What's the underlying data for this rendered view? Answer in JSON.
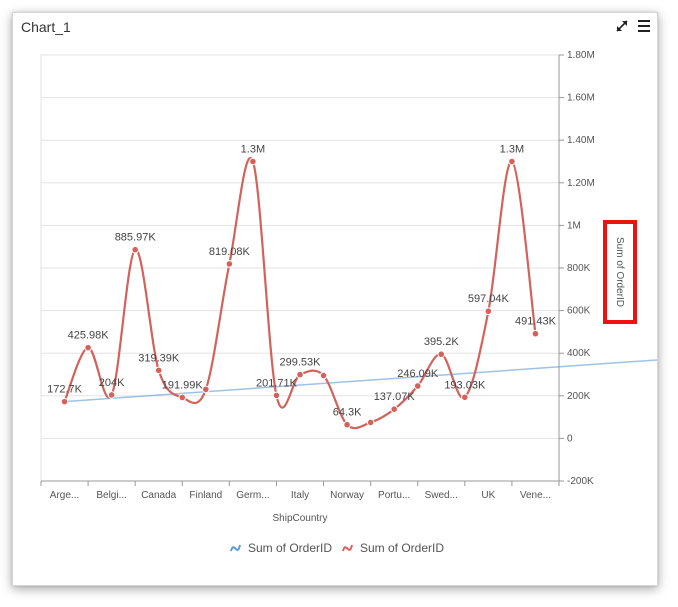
{
  "panel": {
    "title": "Chart_1",
    "icons": [
      "expand-icon",
      "menu-icon"
    ]
  },
  "colors": {
    "series_primary": "#d4625c",
    "series_secondary": "#5b9bd5",
    "grid": "#e3e3e3",
    "highlight_box": "#ee1111"
  },
  "chart_data": {
    "type": "line",
    "smooth": true,
    "categories": [
      "Arge...",
      "Belgi...",
      "Canada",
      "Finland",
      "Germ...",
      "Italy",
      "Norway",
      "Portu...",
      "Swed...",
      "UK",
      "Vene..."
    ],
    "series": [
      {
        "name": "Sum of OrderID",
        "color": "#5b9bd5",
        "points": [
          {
            "x": 0,
            "y": 172700
          },
          {
            "x": 20.5,
            "y": 491430
          }
        ]
      },
      {
        "name": "Sum of OrderID",
        "color": "#d4625c",
        "points": [
          {
            "x": 0,
            "y": 172700,
            "label": "172.7K"
          },
          {
            "x": 0.5,
            "y": 425980,
            "label": "425.98K"
          },
          {
            "x": 1,
            "y": 204000,
            "label": "204K"
          },
          {
            "x": 1.5,
            "y": 885970,
            "label": "885.97K"
          },
          {
            "x": 2,
            "y": 319390,
            "label": "319.39K"
          },
          {
            "x": 2.5,
            "y": 191990,
            "label": "191.99K"
          },
          {
            "x": 3,
            "y": 230000
          },
          {
            "x": 3.5,
            "y": 819080,
            "label": "819.08K"
          },
          {
            "x": 4,
            "y": 1300000,
            "label": "1.3M"
          },
          {
            "x": 4.5,
            "y": 201710,
            "label": "201.71K"
          },
          {
            "x": 5,
            "y": 299530,
            "label": "299.53K"
          },
          {
            "x": 5.5,
            "y": 295000
          },
          {
            "x": 6,
            "y": 64300,
            "label": "64.3K"
          },
          {
            "x": 6.5,
            "y": 75000
          },
          {
            "x": 7,
            "y": 137070,
            "label": "137.07K"
          },
          {
            "x": 7.5,
            "y": 246090,
            "label": "246.09K"
          },
          {
            "x": 8,
            "y": 395200,
            "label": "395.2K"
          },
          {
            "x": 8.5,
            "y": 193030,
            "label": "193.03K"
          },
          {
            "x": 9,
            "y": 597040,
            "label": "597.04K"
          },
          {
            "x": 9.5,
            "y": 1300000,
            "label": "1.3M"
          },
          {
            "x": 10,
            "y": 491430,
            "label": "491.43K"
          }
        ]
      }
    ],
    "xlabel": "ShipCountry",
    "ylabel": "Sum of OrderID",
    "ylim": [
      -200000,
      1800000
    ],
    "yticks": [
      {
        "value": -200000,
        "label": "-200K"
      },
      {
        "value": 0,
        "label": "0"
      },
      {
        "value": 200000,
        "label": "200K"
      },
      {
        "value": 400000,
        "label": "400K"
      },
      {
        "value": 600000,
        "label": "600K"
      },
      {
        "value": 800000,
        "label": "800K"
      },
      {
        "value": 1000000,
        "label": "1M"
      },
      {
        "value": 1200000,
        "label": "1.20M"
      },
      {
        "value": 1400000,
        "label": "1.40M"
      },
      {
        "value": 1600000,
        "label": "1.60M"
      },
      {
        "value": 1800000,
        "label": "1.80M"
      }
    ],
    "y_axis_side": "right",
    "grid": true,
    "legend": {
      "position": "bottom",
      "entries": [
        {
          "label": "Sum of OrderID",
          "color": "#5b9bd5",
          "icon": "spline-icon"
        },
        {
          "label": "Sum of OrderID",
          "color": "#d4625c",
          "icon": "spline-icon"
        }
      ]
    }
  }
}
